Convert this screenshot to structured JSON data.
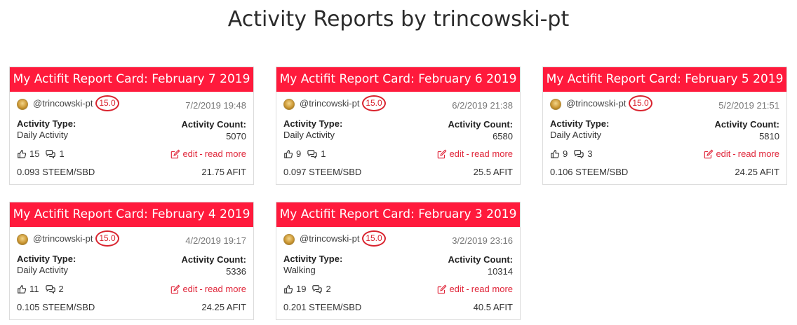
{
  "page": {
    "title": "Activity Reports by trincowski-pt"
  },
  "labels": {
    "activity_type": "Activity Type:",
    "activity_count": "Activity Count:",
    "edit": "edit",
    "separator": "-",
    "read_more": "read more"
  },
  "colors": {
    "header": "#ff1a3c",
    "accent": "#e0263a"
  },
  "icons": {
    "upvote": "thumbs-up-icon",
    "comments": "comments-icon",
    "edit": "edit-icon"
  },
  "cards": [
    {
      "title": "My Actifit Report Card: February 7 2019",
      "username": "@trincowski-pt",
      "reputation": "15.0",
      "date": "7/2/2019 19:48",
      "activity_type": "Daily Activity",
      "activity_count": "5070",
      "votes": "15",
      "comments": "1",
      "reward": "0.093 STEEM/SBD",
      "afit": "21.75 AFIT"
    },
    {
      "title": "My Actifit Report Card: February 6 2019",
      "username": "@trincowski-pt",
      "reputation": "15.0",
      "date": "6/2/2019 21:38",
      "activity_type": "Daily Activity",
      "activity_count": "6580",
      "votes": "9",
      "comments": "1",
      "reward": "0.097 STEEM/SBD",
      "afit": "25.5 AFIT"
    },
    {
      "title": "My Actifit Report Card: February 5 2019",
      "username": "@trincowski-pt",
      "reputation": "15.0",
      "date": "5/2/2019 21:51",
      "activity_type": "Daily Activity",
      "activity_count": "5810",
      "votes": "9",
      "comments": "3",
      "reward": "0.106 STEEM/SBD",
      "afit": "24.25 AFIT"
    },
    {
      "title": "My Actifit Report Card: February 4 2019",
      "username": "@trincowski-pt",
      "reputation": "15.0",
      "date": "4/2/2019 19:17",
      "activity_type": "Daily Activity",
      "activity_count": "5336",
      "votes": "11",
      "comments": "2",
      "reward": "0.105 STEEM/SBD",
      "afit": "24.25 AFIT"
    },
    {
      "title": "My Actifit Report Card: February 3 2019",
      "username": "@trincowski-pt",
      "reputation": "15.0",
      "date": "3/2/2019 23:16",
      "activity_type": "Walking",
      "activity_count": "10314",
      "votes": "19",
      "comments": "2",
      "reward": "0.201 STEEM/SBD",
      "afit": "40.5 AFIT"
    }
  ]
}
